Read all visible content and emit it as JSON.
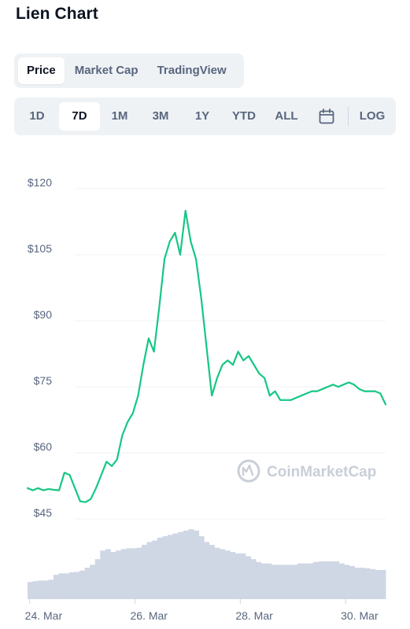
{
  "page": {
    "title": "Lien Chart"
  },
  "view_tabs": [
    {
      "label": "Price",
      "active": true
    },
    {
      "label": "Market Cap",
      "active": false
    },
    {
      "label": "TradingView",
      "active": false
    }
  ],
  "range_buttons": [
    {
      "label": "1D",
      "active": false
    },
    {
      "label": "7D",
      "active": true
    },
    {
      "label": "1M",
      "active": false
    },
    {
      "label": "3M",
      "active": false
    },
    {
      "label": "1Y",
      "active": false
    },
    {
      "label": "YTD",
      "active": false
    },
    {
      "label": "ALL",
      "active": false
    }
  ],
  "calendar_icon": "calendar-icon",
  "log_label": "LOG",
  "watermark": "CoinMarketCap",
  "colors": {
    "line": "#16c784",
    "volume": "#cfd6e4",
    "grid": "#eff2f5",
    "text": "#58667e",
    "accent_bg": "#eff2f5"
  },
  "chart_data": {
    "type": "line",
    "ylim": [
      45,
      120
    ],
    "y_ticks": [
      "$120",
      "$105",
      "$90",
      "$75",
      "$60",
      "$45"
    ],
    "y_tick_values": [
      120,
      105,
      90,
      75,
      60,
      45
    ],
    "x_ticks": [
      "24. Mar",
      "26. Mar",
      "28. Mar",
      "30. Mar"
    ],
    "x_tick_values": [
      24.0,
      26.0,
      28.0,
      30.0
    ],
    "xlim": [
      23.96,
      30.76
    ],
    "grid": true,
    "series": [
      {
        "x": [
          23.96,
          24.06,
          24.16,
          24.26,
          24.36,
          24.46,
          24.56,
          24.66,
          24.76,
          24.86,
          24.96,
          25.06,
          25.16,
          25.26,
          25.36,
          25.46,
          25.56,
          25.66,
          25.76,
          25.86,
          25.96,
          26.06,
          26.16,
          26.26,
          26.36,
          26.46,
          26.56,
          26.66,
          26.76,
          26.86,
          26.96,
          27.06,
          27.16,
          27.26,
          27.36,
          27.46,
          27.56,
          27.66,
          27.76,
          27.86,
          27.96,
          28.06,
          28.16,
          28.26,
          28.36,
          28.46,
          28.56,
          28.66,
          28.76,
          28.86,
          28.96,
          29.06,
          29.16,
          29.26,
          29.36,
          29.46,
          29.56,
          29.66,
          29.76,
          29.86,
          29.96,
          30.06,
          30.16,
          30.26,
          30.36,
          30.46,
          30.56,
          30.66,
          30.76
        ],
        "values": [
          52,
          51.5,
          52,
          51.5,
          51.8,
          51.6,
          51.5,
          55.5,
          55,
          52,
          49,
          48.8,
          49.5,
          52,
          55,
          58,
          57,
          58.5,
          64,
          67,
          69,
          73,
          80,
          86,
          83,
          93,
          104,
          108,
          110,
          105,
          115,
          108,
          104,
          95,
          84,
          73,
          77,
          80,
          81,
          80,
          83,
          81,
          82,
          80,
          78,
          77,
          73,
          74,
          72,
          72,
          72,
          72.5,
          73,
          73.5,
          74,
          74,
          74.5,
          75,
          75.5,
          75,
          75.5,
          76,
          75.5,
          74.5,
          74,
          74,
          74,
          73.5,
          71
        ]
      }
    ],
    "volume": [
      6,
      6.3,
      6.5,
      6.5,
      6.8,
      8.5,
      9,
      9,
      9.4,
      9.5,
      10,
      11,
      12,
      14,
      17,
      17.5,
      16.5,
      17,
      17.5,
      17.8,
      17.8,
      18,
      19,
      20,
      20.5,
      21.5,
      22,
      22.5,
      23,
      23.5,
      24,
      24.5,
      24,
      22,
      20,
      19,
      18,
      17.5,
      17,
      16.5,
      16,
      16,
      15,
      14,
      13,
      12.5,
      12.5,
      12,
      12,
      12,
      12,
      12,
      12.5,
      12.5,
      12.5,
      13,
      13.2,
      13.2,
      13.2,
      13.2,
      12.5,
      12,
      11.6,
      11,
      11,
      10.8,
      10.5,
      10.2,
      10.2
    ]
  }
}
